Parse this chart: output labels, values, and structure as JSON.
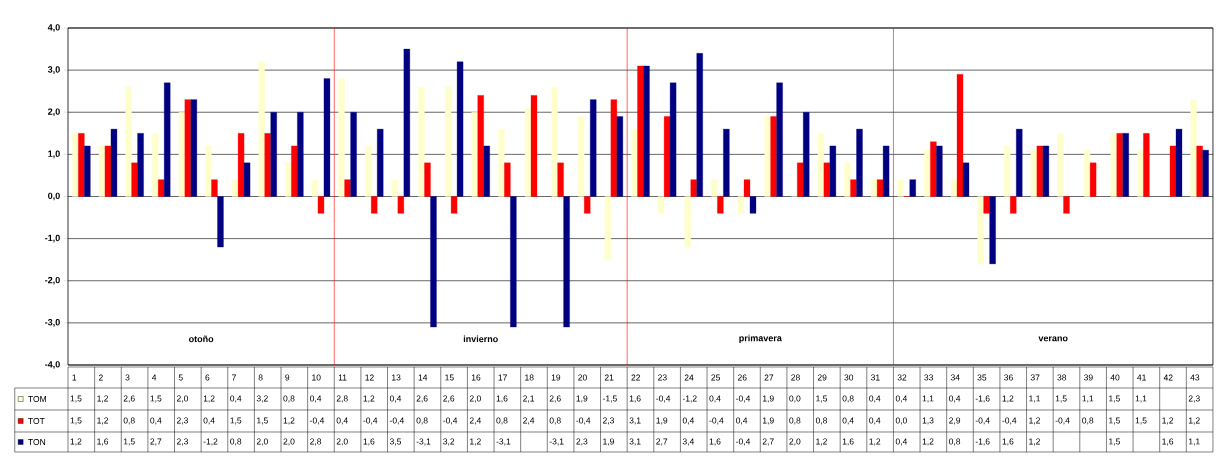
{
  "chart_data": {
    "type": "bar",
    "categories": [
      "1",
      "2",
      "3",
      "4",
      "5",
      "6",
      "7",
      "8",
      "9",
      "10",
      "11",
      "12",
      "13",
      "14",
      "15",
      "16",
      "17",
      "18",
      "19",
      "20",
      "21",
      "22",
      "23",
      "24",
      "25",
      "26",
      "27",
      "28",
      "29",
      "30",
      "31",
      "32",
      "33",
      "34",
      "35",
      "36",
      "37",
      "38",
      "39",
      "40",
      "41",
      "42",
      "43"
    ],
    "series": [
      {
        "name": "TOM",
        "color": "#ffffcc",
        "values": [
          1.5,
          1.2,
          2.6,
          1.5,
          2.0,
          1.2,
          0.4,
          3.2,
          0.8,
          0.4,
          2.8,
          1.2,
          0.4,
          2.6,
          2.6,
          2.0,
          1.6,
          2.1,
          2.6,
          1.9,
          -1.5,
          1.6,
          -0.4,
          -1.2,
          0.4,
          -0.4,
          1.9,
          0.0,
          1.5,
          0.8,
          0.4,
          0.4,
          1.1,
          0.4,
          -1.6,
          1.2,
          1.1,
          1.5,
          1.1,
          1.5,
          1.1,
          null,
          2.3
        ],
        "value_labels": [
          "1,5",
          "1,2",
          "2,6",
          "1,5",
          "2,0",
          "1,2",
          "0,4",
          "3,2",
          "0,8",
          "0,4",
          "2,8",
          "1,2",
          "0,4",
          "2,6",
          "2,6",
          "2,0",
          "1,6",
          "2,1",
          "2,6",
          "1,9",
          "-1,5",
          "1,6",
          "-0,4",
          "-1,2",
          "0,4",
          "-0,4",
          "1,9",
          "0,0",
          "1,5",
          "0,8",
          "0,4",
          "0,4",
          "1,1",
          "0,4",
          "-1,6",
          "1,2",
          "1,1",
          "1,5",
          "1,1",
          "1,5",
          "1,1",
          null,
          "2,3"
        ]
      },
      {
        "name": "TOT",
        "color": "#ff0000",
        "values": [
          1.5,
          1.2,
          0.8,
          0.4,
          2.3,
          0.4,
          1.5,
          1.5,
          1.2,
          -0.4,
          0.4,
          -0.4,
          -0.4,
          0.8,
          -0.4,
          2.4,
          0.8,
          2.4,
          0.8,
          -0.4,
          2.3,
          3.1,
          1.9,
          0.4,
          -0.4,
          0.4,
          1.9,
          0.8,
          0.8,
          0.4,
          0.4,
          0.0,
          1.3,
          2.9,
          -0.4,
          -0.4,
          1.2,
          -0.4,
          0.8,
          1.5,
          1.5,
          1.2,
          1.2
        ],
        "value_labels": [
          "1,5",
          "1,2",
          "0,8",
          "0,4",
          "2,3",
          "0,4",
          "1,5",
          "1,5",
          "1,2",
          "-0,4",
          "0,4",
          "-0,4",
          "-0,4",
          "0,8",
          "-0,4",
          "2,4",
          "0,8",
          "2,4",
          "0,8",
          "-0,4",
          "2,3",
          "3,1",
          "1,9",
          "0,4",
          "-0,4",
          "0,4",
          "1,9",
          "0,8",
          "0,8",
          "0,4",
          "0,4",
          "0,0",
          "1,3",
          "2,9",
          "-0,4",
          "-0,4",
          "1,2",
          "-0,4",
          "0,8",
          "1,5",
          "1,5",
          "1,2",
          "1,2"
        ]
      },
      {
        "name": "TON",
        "color": "#000080",
        "values": [
          1.2,
          1.6,
          1.5,
          2.7,
          2.3,
          -1.2,
          0.8,
          2.0,
          2.0,
          2.8,
          2.0,
          1.6,
          3.5,
          -3.1,
          3.2,
          1.2,
          -3.1,
          null,
          -3.1,
          2.3,
          1.9,
          3.1,
          2.7,
          3.4,
          1.6,
          -0.4,
          2.7,
          2.0,
          1.2,
          1.6,
          1.2,
          0.4,
          1.2,
          0.8,
          -1.6,
          1.6,
          1.2,
          null,
          null,
          1.5,
          null,
          1.6,
          1.1
        ],
        "value_labels": [
          "1,2",
          "1,6",
          "1,5",
          "2,7",
          "2,3",
          "-1,2",
          "0,8",
          "2,0",
          "2,0",
          "2,8",
          "2,0",
          "1,6",
          "3,5",
          "-3,1",
          "3,2",
          "1,2",
          "-3,1",
          null,
          "-3,1",
          "2,3",
          "1,9",
          "3,1",
          "2,7",
          "3,4",
          "1,6",
          "-0,4",
          "2,7",
          "2,0",
          "1,2",
          "1,6",
          "1,2",
          "0,4",
          "1,2",
          "0,8",
          "-1,6",
          "1,6",
          "1,2",
          null,
          null,
          "1,5",
          null,
          "1,6",
          "1,1"
        ]
      }
    ],
    "ylim": [
      -4,
      4
    ],
    "yticks": [
      {
        "value": -4,
        "label": "-4,0"
      },
      {
        "value": -3,
        "label": "-3,0"
      },
      {
        "value": -2,
        "label": "-2,0"
      },
      {
        "value": -1,
        "label": "-1,0"
      },
      {
        "value": 0,
        "label": "0,0"
      },
      {
        "value": 1,
        "label": "1,0"
      },
      {
        "value": 2,
        "label": "2,0"
      },
      {
        "value": 3,
        "label": "3,0"
      },
      {
        "value": 4,
        "label": "4,0"
      }
    ],
    "grid": "y",
    "legend": "bottom left",
    "annotations": [
      "otoño",
      "invierno",
      "primavera",
      "verano"
    ]
  }
}
